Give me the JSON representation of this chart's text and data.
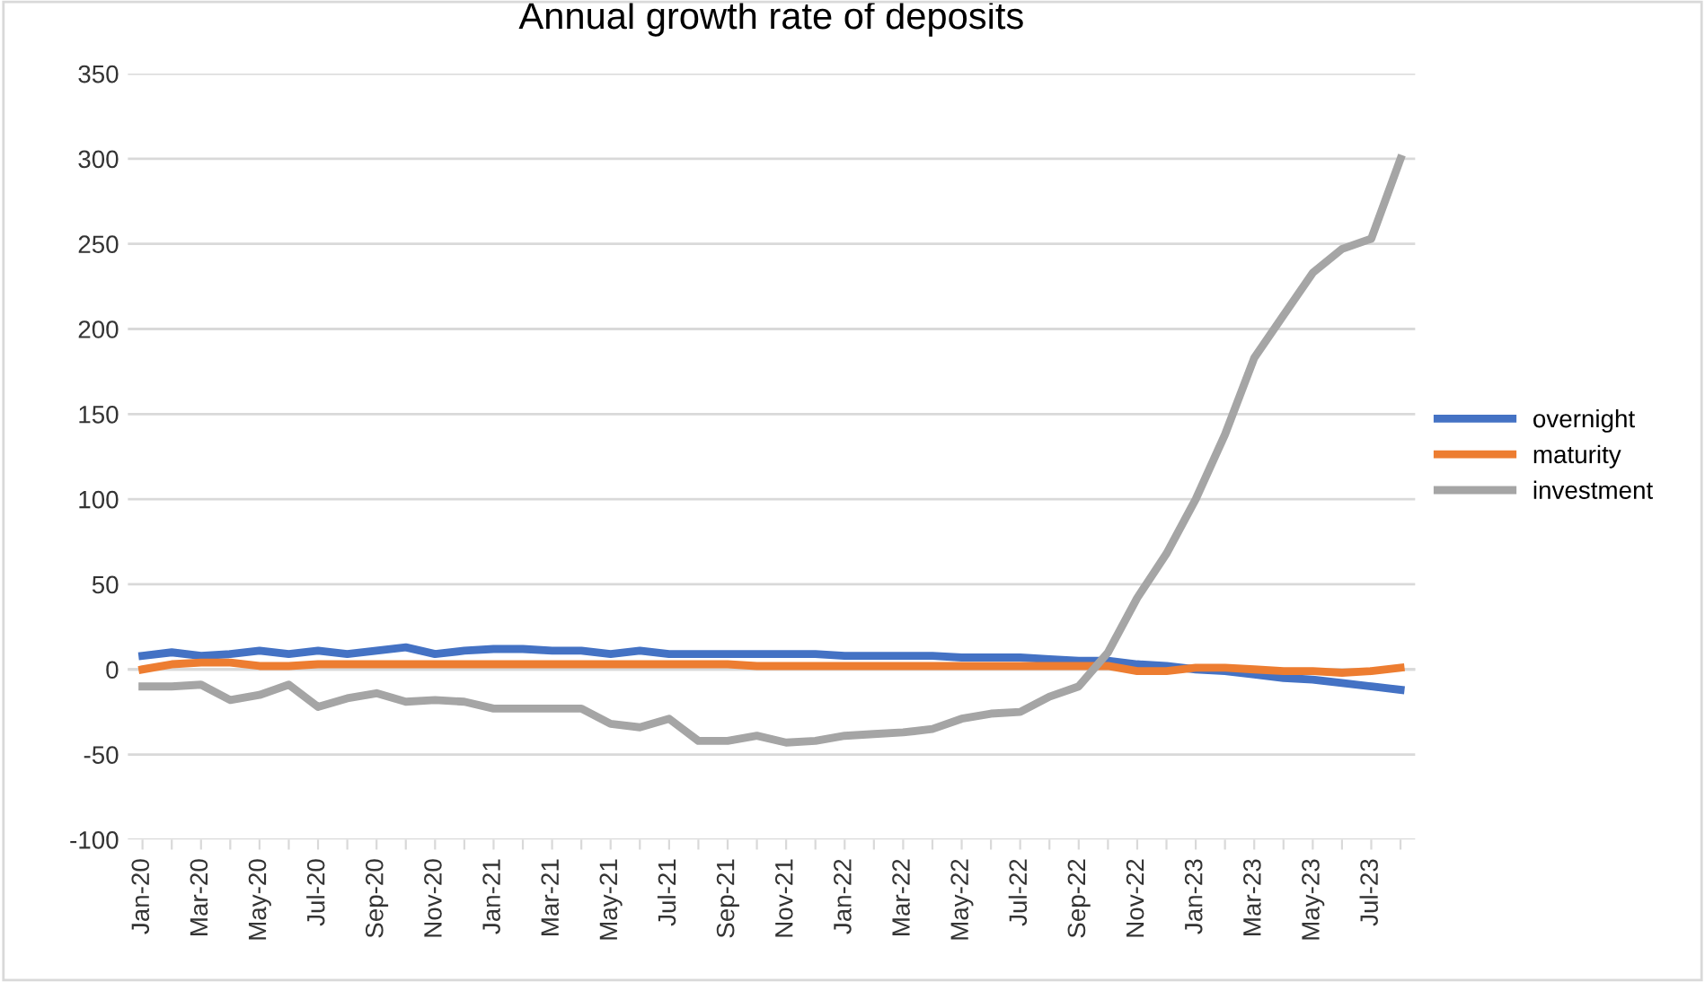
{
  "chart_data": {
    "type": "line",
    "title": "Annual growth rate of deposits",
    "categories": [
      "Jan-20",
      null,
      "Mar-20",
      null,
      "May-20",
      null,
      "Jul-20",
      null,
      "Sep-20",
      null,
      "Nov-20",
      null,
      "Jan-21",
      null,
      "Mar-21",
      null,
      "May-21",
      null,
      "Jul-21",
      null,
      "Sep-21",
      null,
      "Nov-21",
      null,
      "Jan-22",
      null,
      "Mar-22",
      null,
      "May-22",
      null,
      "Jul-22",
      null,
      "Sep-22",
      null,
      "Nov-22",
      null,
      "Jan-23",
      null,
      "Mar-23",
      null,
      "May-23",
      null,
      "Jul-23",
      null
    ],
    "series": [
      {
        "name": "overnight",
        "color": "#4472c4",
        "values": [
          8,
          10,
          8,
          9,
          11,
          9,
          11,
          9,
          11,
          13,
          9,
          11,
          12,
          12,
          11,
          11,
          9,
          11,
          9,
          9,
          9,
          9,
          9,
          9,
          8,
          8,
          8,
          8,
          7,
          7,
          7,
          6,
          5,
          5,
          3,
          2,
          0,
          -1,
          -3,
          -5,
          -6,
          -8,
          -10,
          -12
        ]
      },
      {
        "name": "maturity",
        "color": "#ed7d31",
        "values": [
          0,
          3,
          4,
          4,
          2,
          2,
          3,
          3,
          3,
          3,
          3,
          3,
          3,
          3,
          3,
          3,
          3,
          3,
          3,
          3,
          3,
          2,
          2,
          2,
          2,
          2,
          2,
          2,
          2,
          2,
          2,
          2,
          2,
          2,
          -1,
          -1,
          1,
          1,
          0,
          -1,
          -1,
          -2,
          -1,
          1
        ]
      },
      {
        "name": "investment",
        "color": "#a5a5a5",
        "values": [
          -10,
          -10,
          -9,
          -18,
          -15,
          -9,
          -22,
          -17,
          -14,
          -19,
          -18,
          -19,
          -23,
          -23,
          -23,
          -23,
          -32,
          -34,
          -29,
          -42,
          -42,
          -39,
          -43,
          -42,
          -39,
          -38,
          -37,
          -35,
          -29,
          -26,
          -25,
          -16,
          -10,
          10,
          42,
          68,
          100,
          138,
          183,
          208,
          233,
          247,
          253,
          300
        ]
      }
    ],
    "ylim": [
      -100,
      350
    ],
    "yticks": [
      -100,
      -50,
      0,
      50,
      100,
      150,
      200,
      250,
      300,
      350
    ],
    "grid": "y",
    "legend": "right",
    "marker": "none",
    "line_style": "solid"
  }
}
